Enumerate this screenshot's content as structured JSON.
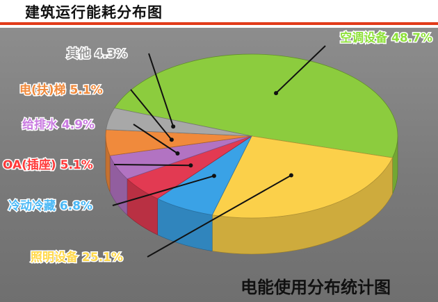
{
  "page_title": "建筑运行能耗分布图",
  "chart_data": {
    "type": "pie",
    "title": "电能使用分布统计图",
    "categories": [
      "空调设备",
      "照明设备",
      "冷动冷藏",
      "OA(插座)",
      "给排水",
      "电(扶)梯",
      "其他"
    ],
    "values": [
      48.7,
      25.1,
      6.8,
      5.1,
      4.9,
      5.1,
      4.3
    ],
    "labels": [
      "空调设备 48.7%",
      "照明设备 25.1%",
      "冷动冷藏 6.8%",
      "OA(插座) 5.1%",
      "给排水 4.9%",
      "电(扶)梯 5.1%",
      "其他 4.3%"
    ],
    "colors": [
      "#8ccc3e",
      "#fbd04a",
      "#3aa2e6",
      "#e23a52",
      "#b273c2",
      "#f08a3c",
      "#a8a8a8"
    ],
    "label_colors": [
      "#8ee03a",
      "#ffd84a",
      "#4ab8f5",
      "#ff3a3a",
      "#c97be0",
      "#f08a3c",
      "#9a9a9a"
    ]
  }
}
